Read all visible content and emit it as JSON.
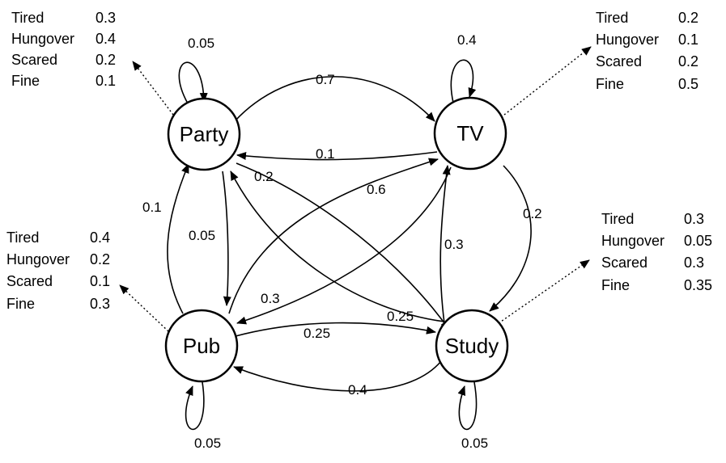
{
  "states": {
    "party": {
      "label": "Party"
    },
    "tv": {
      "label": "TV"
    },
    "pub": {
      "label": "Pub"
    },
    "study": {
      "label": "Study"
    }
  },
  "transitions": {
    "party_self": "0.05",
    "party_tv": "0.7",
    "tv_party": "0.1",
    "party_study": "0.2",
    "party_pub": "0.05",
    "pub_party": "0.1",
    "pub_tv": "0.6",
    "tv_pub": "0.3",
    "tv_self": "0.4",
    "tv_study": "0.2",
    "study_tv": "0.3",
    "study_party": "0.25",
    "pub_study": "0.25",
    "study_pub": "0.4",
    "pub_self": "0.05",
    "study_self": "0.05"
  },
  "emissions": {
    "party": [
      {
        "name": "Tired",
        "value": "0.3"
      },
      {
        "name": "Hungover",
        "value": "0.4"
      },
      {
        "name": "Scared",
        "value": "0.2"
      },
      {
        "name": "Fine",
        "value": "0.1"
      }
    ],
    "tv": [
      {
        "name": "Tired",
        "value": "0.2"
      },
      {
        "name": "Hungover",
        "value": "0.1"
      },
      {
        "name": "Scared",
        "value": "0.2"
      },
      {
        "name": "Fine",
        "value": "0.5"
      }
    ],
    "pub": [
      {
        "name": "Tired",
        "value": "0.4"
      },
      {
        "name": "Hungover",
        "value": "0.2"
      },
      {
        "name": "Scared",
        "value": "0.1"
      },
      {
        "name": "Fine",
        "value": "0.3"
      }
    ],
    "study": [
      {
        "name": "Tired",
        "value": "0.3"
      },
      {
        "name": "Hungover",
        "value": "0.05"
      },
      {
        "name": "Scared",
        "value": "0.3"
      },
      {
        "name": "Fine",
        "value": "0.35"
      }
    ]
  }
}
